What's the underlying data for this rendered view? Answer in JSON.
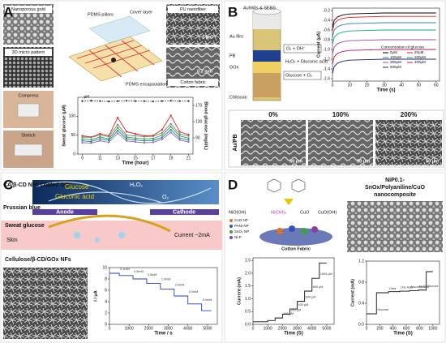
{
  "panels": {
    "a": {
      "label": "A",
      "images": [
        "Nanoporous gold",
        "3D micro pattern",
        "PU nanofiber",
        "Cotton fabric"
      ],
      "scale_bars": [
        "1 μm",
        "0.2 mm"
      ],
      "diagram": [
        "PDMS pillars",
        "Cover layer",
        "PDMS encapsulation"
      ],
      "photos": [
        "Compress",
        "Stretch"
      ],
      "chart": {
        "type": "line",
        "x": [
          9,
          10,
          11,
          12,
          13,
          14,
          15,
          16,
          17,
          18,
          19,
          20,
          21
        ],
        "xlim": [
          8.5,
          21.5
        ],
        "xticks": [
          9,
          11,
          13,
          15,
          17,
          19,
          21
        ],
        "xlabel": "Time (hour)",
        "ylabel": "Sweat glucose (μM)",
        "ylim": [
          0,
          150
        ],
        "yticks": [
          0,
          50,
          100
        ],
        "y2label": "Blood glucose (mg/dL)",
        "y2lim": [
          50,
          190
        ],
        "y2ticks": [
          90,
          130,
          170
        ],
        "y3lim": [
          0,
          7.5
        ],
        "series": [
          {
            "name": "pH",
            "color": "#222222",
            "style": "dotted",
            "axis": "y3",
            "values": [
              7,
              7.05,
              7,
              6.95,
              7,
              7.05,
              7,
              7,
              6.95,
              7,
              7.05,
              7,
              7
            ]
          },
          {
            "color": "#d62728",
            "axis": "y2",
            "values": [
              95,
              92,
              100,
              95,
              140,
              105,
              100,
              95,
              96,
              110,
              145,
              105,
              98
            ]
          },
          {
            "color": "#7f7f7f",
            "values": [
              45,
              44,
              50,
              46,
              78,
              50,
              48,
              46,
              47,
              56,
              80,
              53,
              48
            ]
          },
          {
            "color": "#2ca02c",
            "values": [
              40,
              38,
              45,
              40,
              70,
              45,
              42,
              40,
              41,
              50,
              72,
              48,
              42
            ]
          },
          {
            "color": "#1f77b4",
            "values": [
              35,
              33,
              40,
              36,
              62,
              40,
              37,
              35,
              36,
              44,
              64,
              42,
              37
            ]
          },
          {
            "color": "#9467bd",
            "values": [
              30,
              29,
              35,
              31,
              55,
              35,
              32,
              30,
              31,
              39,
              57,
              37,
              32
            ]
          }
        ]
      }
    },
    "b": {
      "label": "B",
      "chip": [
        "AuNWs & SEBS",
        "Au film",
        "PB",
        "GOx",
        "Chitosan"
      ],
      "reactions": [
        "O₂ + OH⁻",
        "H₂O₂ + Gluconic acid",
        "Glucose + O₂"
      ],
      "chart": {
        "type": "line",
        "x": [
          0,
          1,
          3,
          6,
          10,
          20,
          30,
          40,
          50,
          60
        ],
        "xlim": [
          0,
          62
        ],
        "xticks": [
          0,
          10,
          20,
          30,
          40,
          50,
          60
        ],
        "xlabel": "Time (s)",
        "ylabel": "Current (μA)",
        "ylim": [
          -1.65,
          -0.15
        ],
        "yticks": [
          -0.2,
          -0.4,
          -0.6,
          -0.8,
          {
            "value": -1,
            "label": "-1.0"
          },
          -1.2,
          -1.4,
          -1.6
        ],
        "legend_title": "Concentration of glucose",
        "series": [
          {
            "name": "0μM",
            "color": "#000000",
            "values": [
              -0.55,
              -0.4,
              -0.33,
              -0.29,
              -0.27,
              -0.26,
              -0.25,
              -0.25,
              -0.25,
              -0.25
            ]
          },
          {
            "name": "20μM",
            "color": "#e41a1c",
            "values": [
              -0.62,
              -0.47,
              -0.4,
              -0.36,
              -0.34,
              -0.33,
              -0.32,
              -0.32,
              -0.32,
              -0.32
            ]
          },
          {
            "name": "100μM",
            "color": "#377eb8",
            "values": [
              -0.75,
              -0.6,
              -0.53,
              -0.49,
              -0.47,
              -0.46,
              -0.45,
              -0.45,
              -0.45,
              -0.45
            ]
          },
          {
            "name": "200μM",
            "color": "#17a589",
            "values": [
              -0.9,
              -0.75,
              -0.68,
              -0.64,
              -0.62,
              -0.61,
              -0.6,
              -0.6,
              -0.6,
              -0.6
            ]
          },
          {
            "name": "300μM",
            "color": "#984ea3",
            "values": [
              -1.1,
              -0.95,
              -0.88,
              -0.84,
              -0.82,
              -0.81,
              -0.8,
              -0.8,
              -0.8,
              -0.8
            ]
          },
          {
            "name": "400μM",
            "color": "#c2185b",
            "values": [
              -1.3,
              -1.15,
              -1.08,
              -1.04,
              -1.02,
              -1.01,
              -1,
              -1,
              -1,
              -1
            ]
          },
          {
            "name": "500μM",
            "color": "#1a237e",
            "values": [
              -1.5,
              -1.35,
              -1.28,
              -1.24,
              -1.22,
              -1.21,
              -1.2,
              -1.2,
              -1.2,
              -1.2
            ]
          }
        ]
      },
      "strain": {
        "columns": [
          "0%",
          "100%",
          "200%"
        ],
        "row_label": "Au/PB",
        "scale_bar": "50 μm"
      }
    },
    "c": {
      "label": "C",
      "coating": "CA/β-CD NFs coated GOx",
      "species": [
        "Glucose",
        "Gluconic acid",
        "H₂O₂",
        "O₂"
      ],
      "mediator": "Prussian blue",
      "electrodes": [
        "Anode",
        "Cathode"
      ],
      "analyte": "Sweat glucose",
      "skin": "Skin",
      "current": "Current ~2mA",
      "image_label": "Cellulose/β-CD/GOx NFs",
      "chart": {
        "type": "line",
        "x": [
          0,
          500,
          500,
          1200,
          1200,
          1900,
          1900,
          2600,
          2600,
          3300,
          3300,
          4000,
          4000,
          4700,
          4700,
          5200
        ],
        "xlim": [
          0,
          5500
        ],
        "xticks": [
          0,
          1000,
          2000,
          3000,
          4000,
          5000
        ],
        "xlabel": "Time / s",
        "ylabel": "I / μA",
        "ylim": [
          0,
          10
        ],
        "yticks": [
          0,
          2,
          4,
          6,
          8,
          10
        ],
        "annotations": [
          "0.1mM",
          "0.3mM",
          "0.5mM",
          "1.0mM",
          "2.0mM",
          "3.0mM",
          "5.0mM"
        ],
        "series": [
          {
            "color": "#1f3fd1",
            "values": [
              9,
              9,
              8.6,
              8.6,
              8,
              8,
              7.2,
              7.2,
              6.2,
              6.2,
              5,
              5,
              3.6,
              3.6,
              2.4,
              2.4
            ]
          }
        ]
      }
    },
    "d": {
      "label": "D",
      "reaction": [
        "NiO(OH)",
        "Ni(OH)₂",
        "CuO",
        "CuO(OH)"
      ],
      "legend": [
        "CuO NP",
        "PANI NP",
        "SnO₂ NP",
        "Ni-P"
      ],
      "substrate": "Cotton Fabric",
      "image_label": [
        "NiP0.1-",
        "SnOx/Polyaniline/CuO",
        "nanocomposite"
      ],
      "chart1": {
        "type": "line",
        "x": [
          0,
          1000,
          1000,
          1500,
          1500,
          2000,
          2000,
          2500,
          2500,
          3000,
          3000,
          3500,
          3500,
          4000,
          4000,
          4500,
          4500,
          5000
        ],
        "xlim": [
          0,
          5500
        ],
        "xticks": [
          0,
          1000,
          2000,
          3000,
          4000,
          5000
        ],
        "xlabel": "Time (S)",
        "ylabel": "Current (mA)",
        "ylim": [
          0,
          2.6
        ],
        "yticks": [
          {
            "value": 0,
            "label": "0.0"
          },
          0.5,
          {
            "value": 1,
            "label": "1.0"
          },
          1.5,
          {
            "value": 2,
            "label": "2.0"
          },
          2.5
        ],
        "annotations": [
          "100 μM",
          "200 μM",
          "400 μM",
          "600 μM",
          "800 μM",
          "1000 μM"
        ],
        "series": [
          {
            "color": "#111111",
            "values": [
              0.1,
              0.1,
              0.15,
              0.15,
              0.25,
              0.25,
              0.4,
              0.4,
              0.6,
              0.6,
              0.9,
              0.9,
              1.3,
              1.3,
              1.8,
              1.8,
              2.4,
              2.4
            ]
          }
        ]
      },
      "chart2": {
        "type": "line",
        "x": [
          0,
          150,
          150,
          330,
          330,
          500,
          500,
          650,
          650,
          780,
          780,
          900,
          900,
          1000
        ],
        "xlim": [
          0,
          1100
        ],
        "xticks": [
          0,
          200,
          400,
          600,
          800,
          1000
        ],
        "xlabel": "Time (S)",
        "ylabel": "Current (mA)",
        "ylim": [
          0,
          1.2
        ],
        "yticks": [
          {
            "value": 0,
            "label": "0.0"
          },
          0.4,
          0.8,
          1.2
        ],
        "annotations": [
          "Glucose",
          "Urea",
          "Uric Acid",
          "Ascorbic Acid",
          "NaCl",
          "Glucose"
        ],
        "series": [
          {
            "color": "#111111",
            "values": [
              0.2,
              0.2,
              0.6,
              0.6,
              0.62,
              0.62,
              0.63,
              0.63,
              0.64,
              0.64,
              0.65,
              0.65,
              1,
              1
            ]
          }
        ]
      }
    }
  }
}
